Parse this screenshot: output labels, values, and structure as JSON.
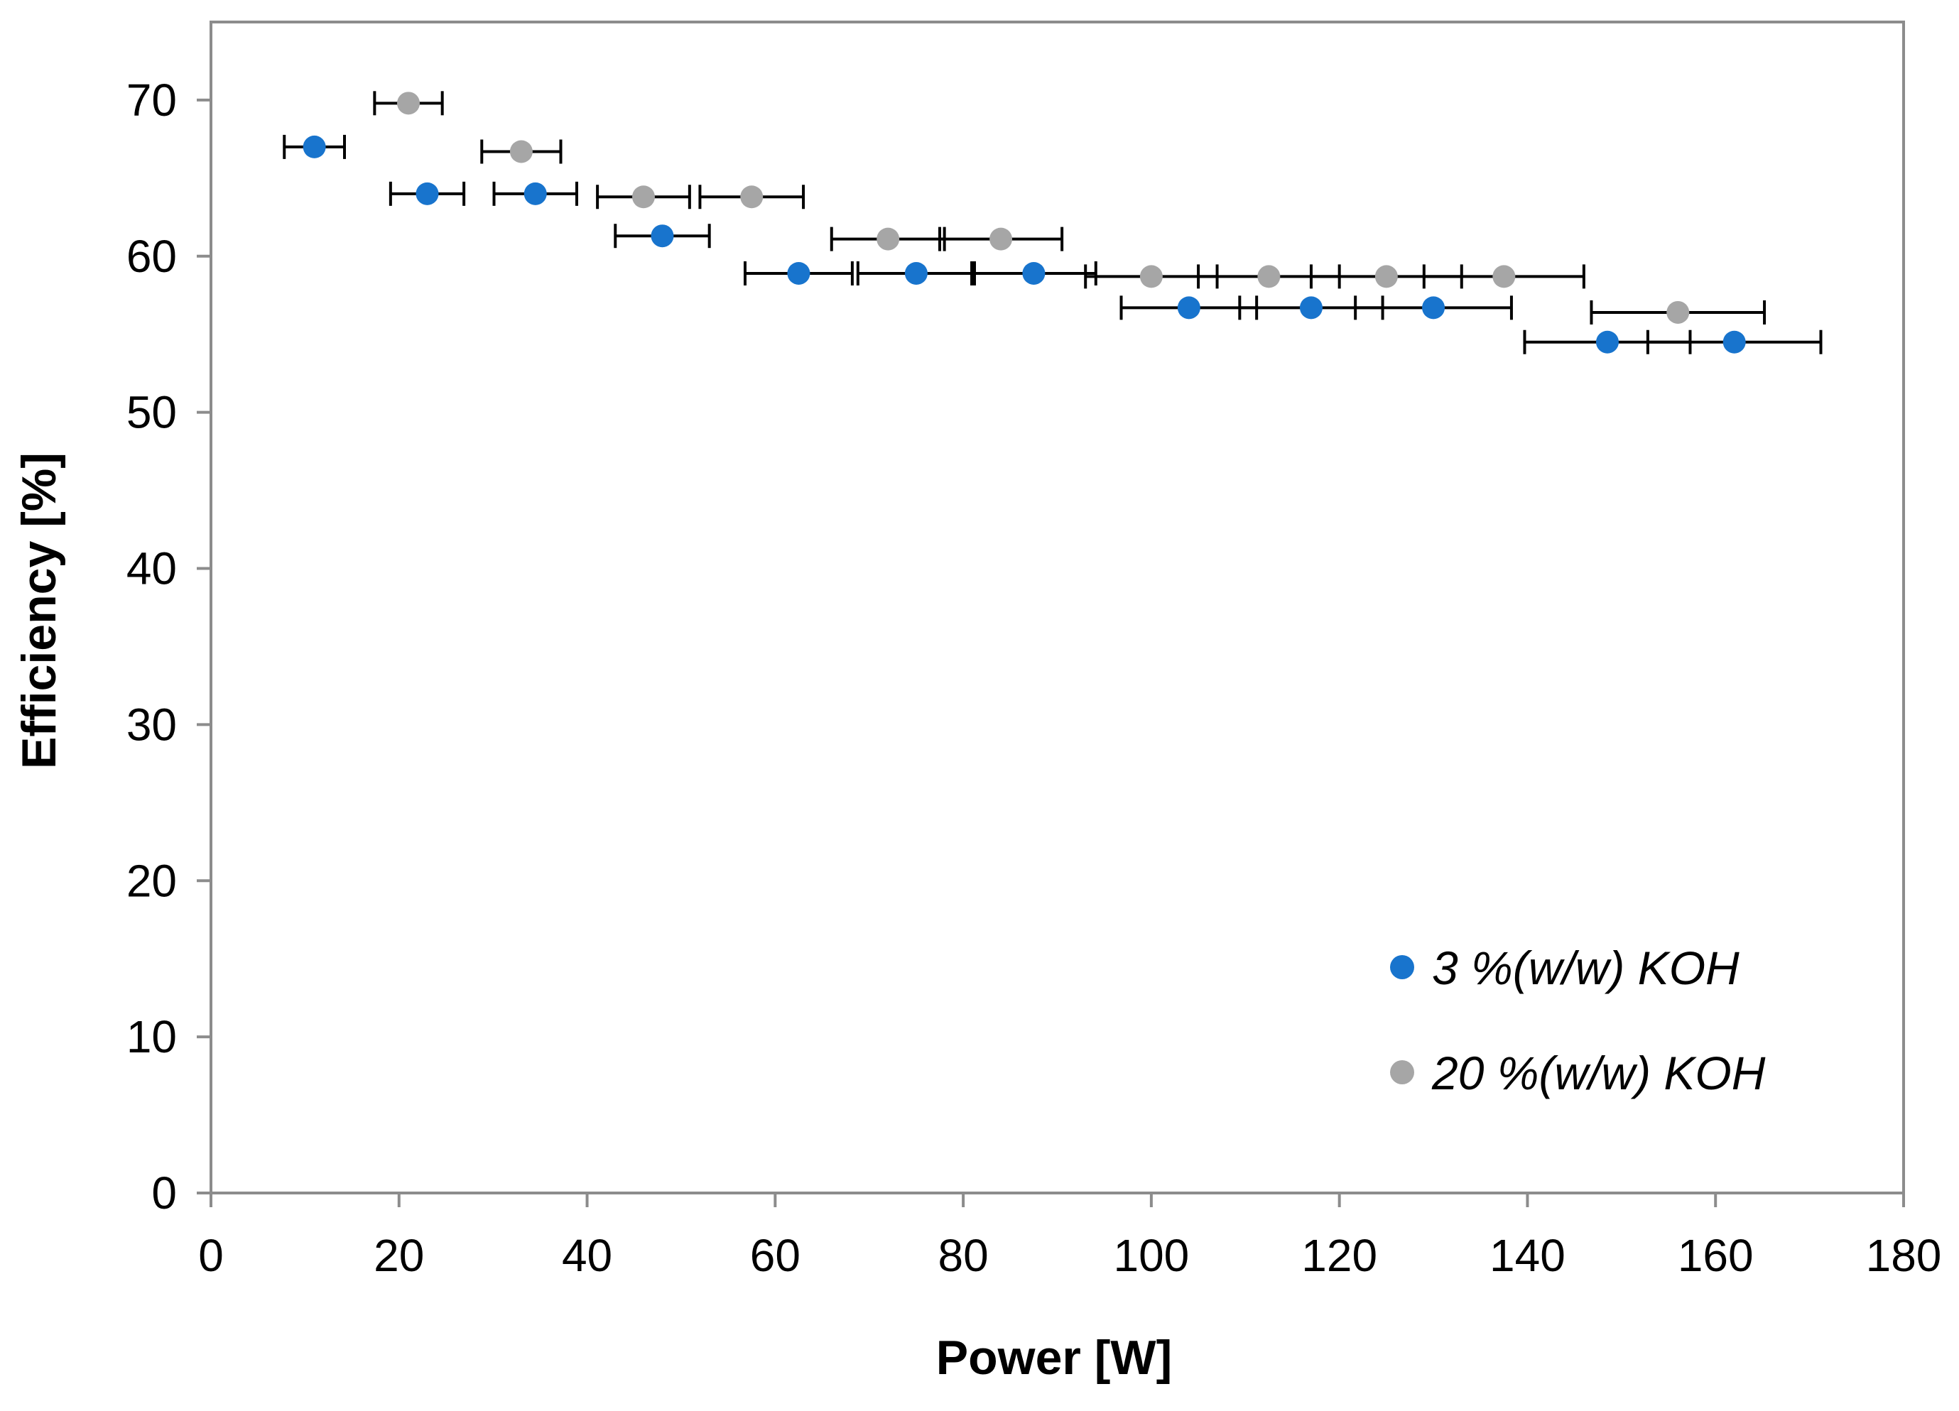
{
  "chart_data": {
    "type": "scatter",
    "title": "",
    "xlabel": "Power [W]",
    "ylabel": "Efficiency [%]",
    "xlim": [
      0,
      180
    ],
    "ylim": [
      0,
      75
    ],
    "xticks": [
      0,
      20,
      40,
      60,
      80,
      100,
      120,
      140,
      160,
      180
    ],
    "yticks": [
      0,
      10,
      20,
      30,
      40,
      50,
      60,
      70
    ],
    "grid": false,
    "legend_position": "bottom-right",
    "series": [
      {
        "name": "3 %(w/w) KOH",
        "color": "#1874CD",
        "points": [
          {
            "x": 11.0,
            "y": 67.0,
            "xerr": 3.2
          },
          {
            "x": 23.0,
            "y": 64.0,
            "xerr": 3.9
          },
          {
            "x": 34.5,
            "y": 64.0,
            "xerr": 4.4
          },
          {
            "x": 48.0,
            "y": 61.3,
            "xerr": 5.0
          },
          {
            "x": 62.5,
            "y": 58.9,
            "xerr": 5.7
          },
          {
            "x": 75.0,
            "y": 58.9,
            "xerr": 6.2
          },
          {
            "x": 87.5,
            "y": 58.9,
            "xerr": 6.6
          },
          {
            "x": 104.0,
            "y": 56.7,
            "xerr": 7.2
          },
          {
            "x": 117.0,
            "y": 56.7,
            "xerr": 7.6
          },
          {
            "x": 130.0,
            "y": 56.7,
            "xerr": 8.3
          },
          {
            "x": 148.5,
            "y": 54.5,
            "xerr": 8.8
          },
          {
            "x": 162.0,
            "y": 54.5,
            "xerr": 9.2
          }
        ]
      },
      {
        "name": "20 %(w/w) KOH",
        "color": "#A6A6A6",
        "points": [
          {
            "x": 21.0,
            "y": 69.8,
            "xerr": 3.6
          },
          {
            "x": 33.0,
            "y": 66.7,
            "xerr": 4.2
          },
          {
            "x": 46.0,
            "y": 63.8,
            "xerr": 4.9
          },
          {
            "x": 57.5,
            "y": 63.8,
            "xerr": 5.5
          },
          {
            "x": 72.0,
            "y": 61.1,
            "xerr": 6.0
          },
          {
            "x": 84.0,
            "y": 61.1,
            "xerr": 6.5
          },
          {
            "x": 100.0,
            "y": 58.7,
            "xerr": 7.0
          },
          {
            "x": 112.5,
            "y": 58.7,
            "xerr": 7.5
          },
          {
            "x": 125.0,
            "y": 58.7,
            "xerr": 8.0
          },
          {
            "x": 137.5,
            "y": 58.7,
            "xerr": 8.5
          },
          {
            "x": 156.0,
            "y": 56.4,
            "xerr": 9.2
          }
        ]
      }
    ]
  }
}
